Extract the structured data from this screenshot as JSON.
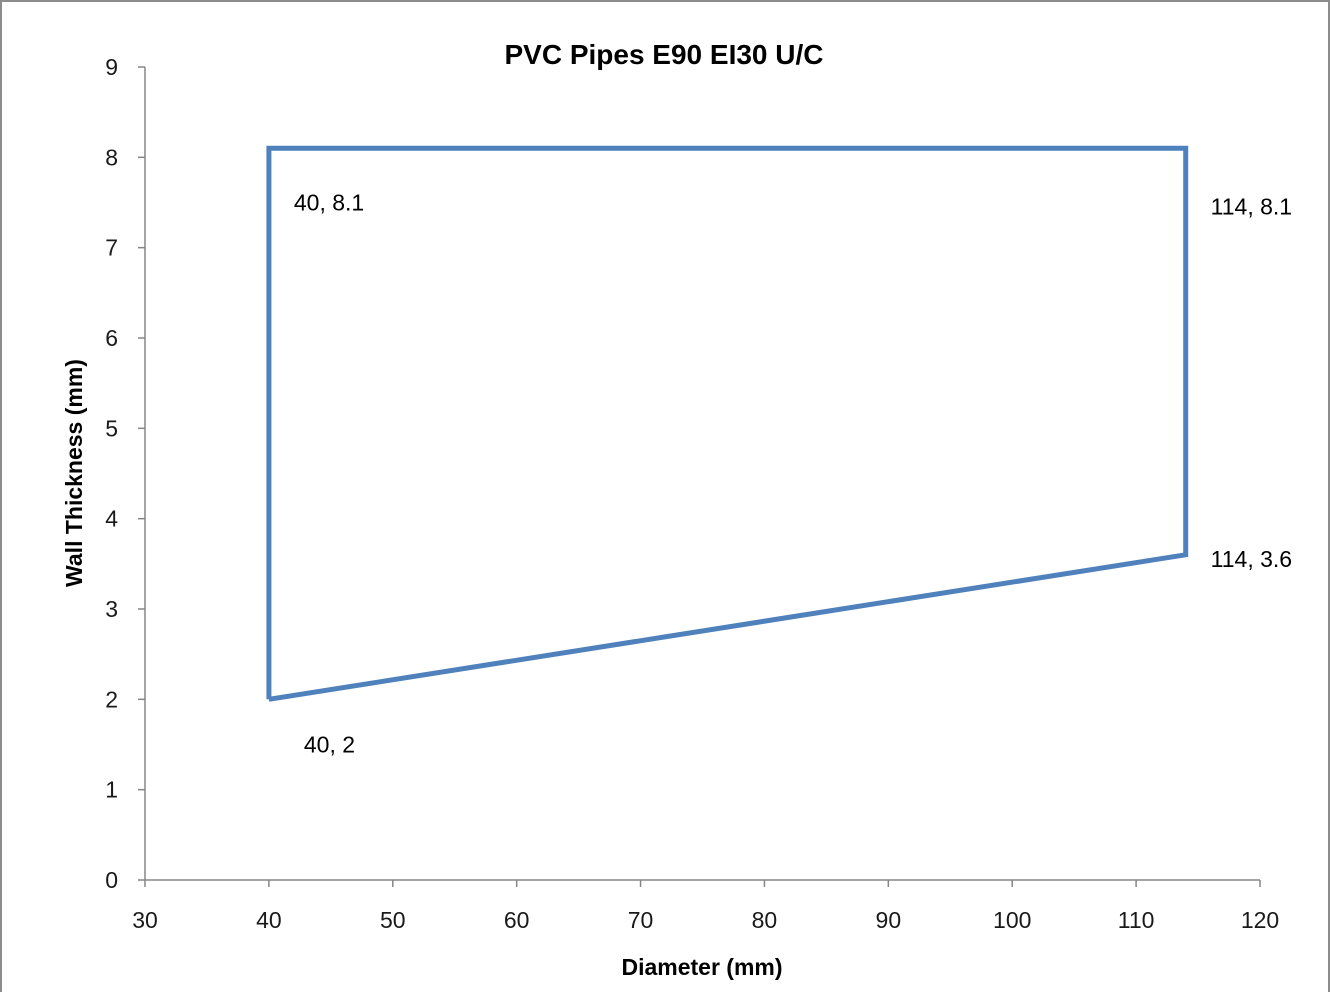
{
  "chart_data": {
    "type": "scatter",
    "title": "PVC Pipes E90 EI30 U/C",
    "xlabel": "Diameter (mm)",
    "ylabel": "Wall Thickness (mm)",
    "xlim": [
      30,
      120
    ],
    "ylim": [
      0,
      9
    ],
    "x_ticks": [
      30,
      40,
      50,
      60,
      70,
      80,
      90,
      100,
      110,
      120
    ],
    "y_ticks": [
      0,
      1,
      2,
      3,
      4,
      5,
      6,
      7,
      8,
      9
    ],
    "grid": false,
    "legend": "none",
    "series": [
      {
        "points": [
          {
            "x": 40,
            "y": 2
          },
          {
            "x": 40,
            "y": 8.1
          },
          {
            "x": 114,
            "y": 8.1
          },
          {
            "x": 114,
            "y": 3.6
          },
          {
            "x": 40,
            "y": 2
          }
        ],
        "color": "#4f81bd"
      }
    ],
    "data_labels": [
      {
        "text": "40, 8.1",
        "x": 40,
        "y": 8.1
      },
      {
        "text": "114, 8.1",
        "x": 114,
        "y": 8.1
      },
      {
        "text": "114, 3.6",
        "x": 114,
        "y": 3.6
      },
      {
        "text": "40, 2",
        "x": 40,
        "y": 2
      }
    ]
  }
}
